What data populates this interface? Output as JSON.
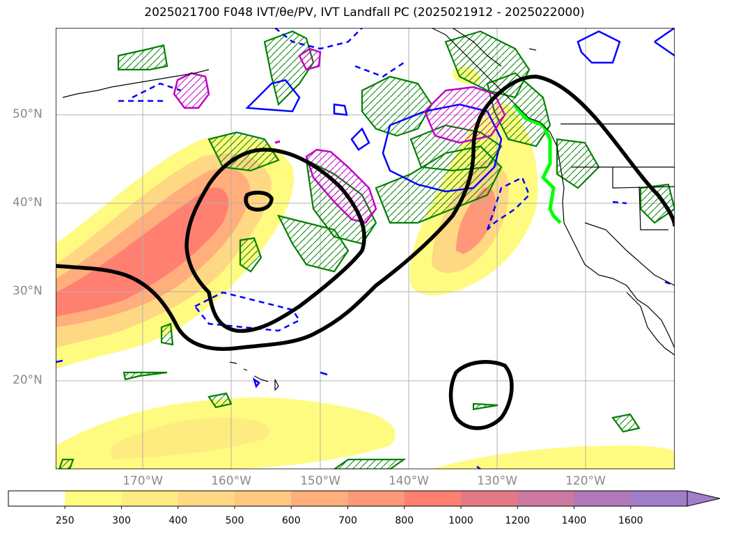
{
  "title": "2025021700 F048 IVT/θe/PV, IVT Landfall PC (2025021912 - 2025022000)",
  "lat_labels": [
    "50°N",
    "40°N",
    "30°N",
    "20°N"
  ],
  "lon_labels": [
    "170°W",
    "160°W",
    "150°W",
    "140°W",
    "130°W",
    "120°W"
  ],
  "colorbar": {
    "ticks": [
      "250",
      "300",
      "400",
      "500",
      "600",
      "700",
      "800",
      "1000",
      "1200",
      "1400",
      "1600"
    ],
    "colors": [
      "#ffffff",
      "#fffb80",
      "#ffec80",
      "#ffd884",
      "#ffc880",
      "#ffae7c",
      "#ff9878",
      "#ff8070",
      "#e47884",
      "#cc78a0",
      "#b078b8",
      "#a07ec8"
    ]
  },
  "colors": {
    "ivt_contour": "#000000",
    "theta_e_positive": "#0000ff",
    "pv_contour": "#008000",
    "pv_hatch": "#c000c0",
    "landfall_line": "#00ff00",
    "coastline": "#000000",
    "grid": "#b0b0b0"
  }
}
